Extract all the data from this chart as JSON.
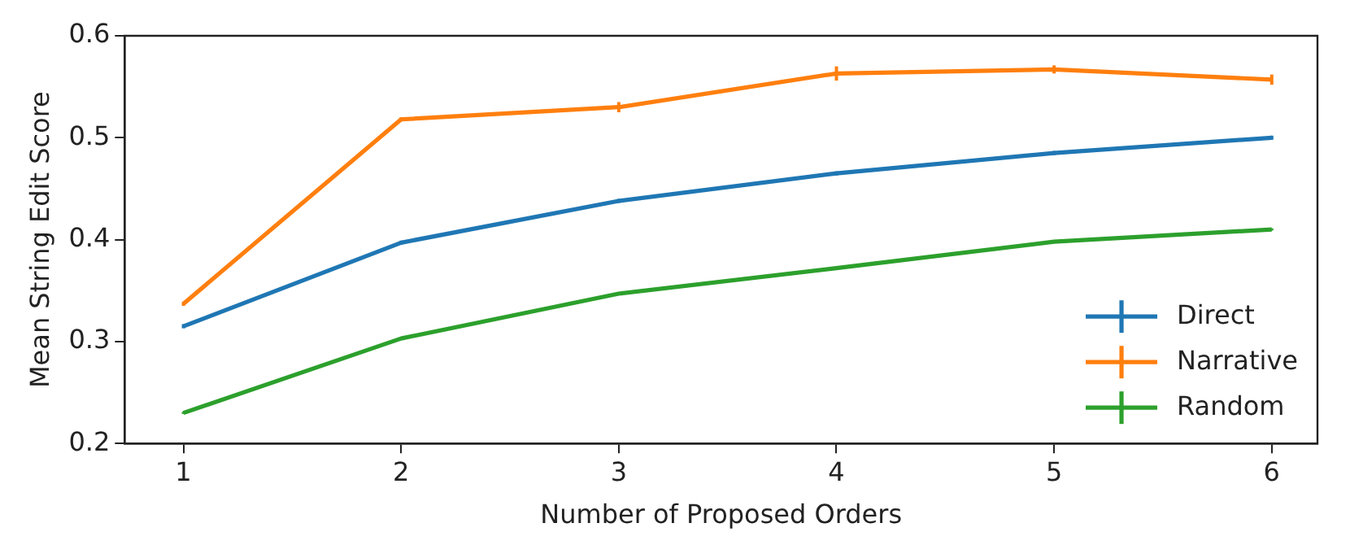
{
  "chart_data": {
    "type": "line",
    "xlabel": "Number of Proposed Orders",
    "ylabel": "Mean String Edit Score",
    "x": [
      1,
      2,
      3,
      4,
      5,
      6
    ],
    "xlim": [
      0.73,
      6.21
    ],
    "xticks": [
      1,
      2,
      3,
      4,
      5,
      6
    ],
    "ylim": [
      0.2,
      0.6
    ],
    "yticks": [
      0.2,
      0.3,
      0.4,
      0.5,
      0.6
    ],
    "series": [
      {
        "name": "Direct",
        "color": "#1f77b4",
        "values": [
          0.315,
          0.397,
          0.438,
          0.465,
          0.485,
          0.5
        ],
        "errors": [
          0.002,
          0.002,
          0.002,
          0.002,
          0.002,
          0.002
        ]
      },
      {
        "name": "Narrative",
        "color": "#ff7f0e",
        "values": [
          0.337,
          0.518,
          0.53,
          0.563,
          0.567,
          0.557
        ],
        "errors": [
          0.002,
          0.002,
          0.005,
          0.007,
          0.004,
          0.005
        ]
      },
      {
        "name": "Random",
        "color": "#2ca02c",
        "values": [
          0.23,
          0.303,
          0.347,
          0.372,
          0.398,
          0.41
        ],
        "errors": [
          0.001,
          0.001,
          0.001,
          0.001,
          0.001,
          0.001
        ]
      }
    ],
    "legend": "bottom right",
    "grid": false,
    "marker": "none",
    "line_style": "solid"
  }
}
